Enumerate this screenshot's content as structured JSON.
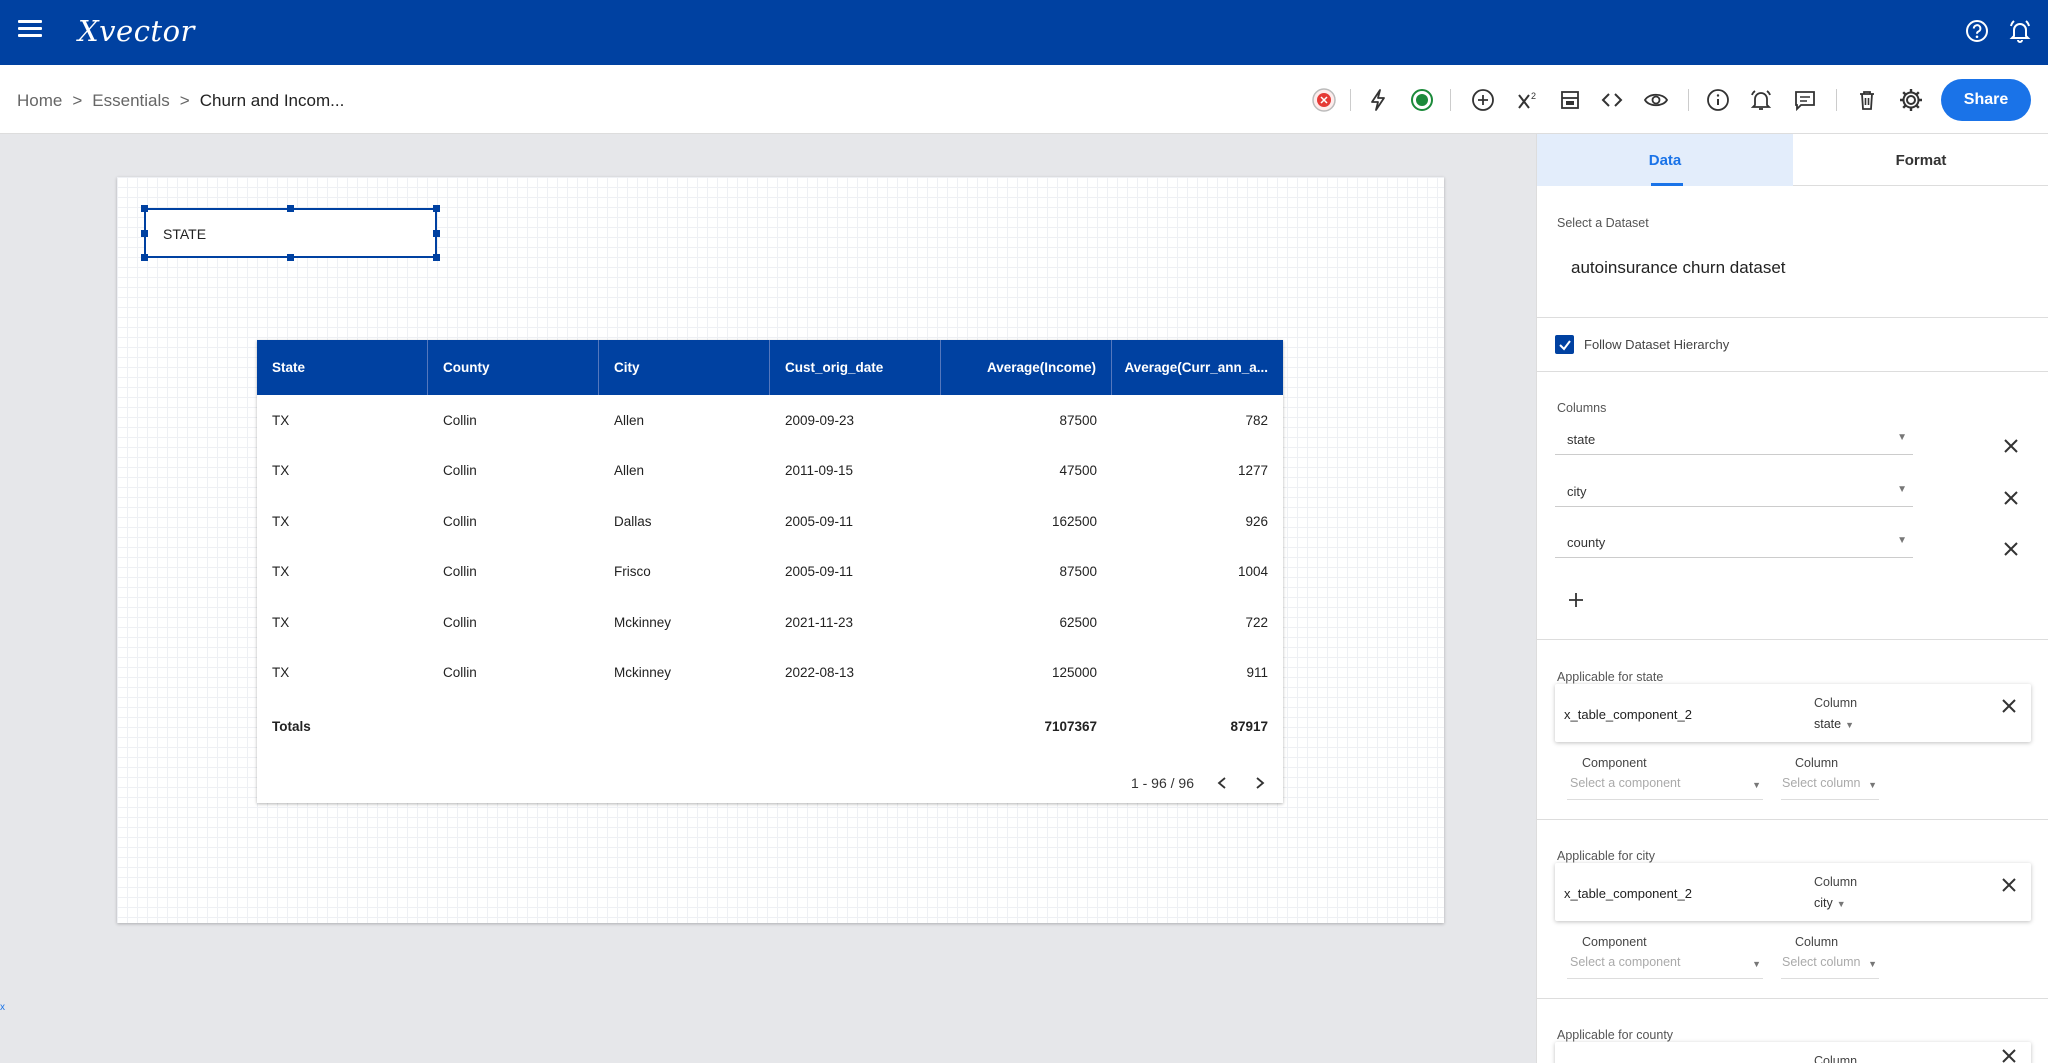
{
  "app": {
    "logo": "Xvector"
  },
  "breadcrumb": {
    "home": "Home",
    "sep1": ">",
    "essentials": "Essentials",
    "sep2": ">",
    "current": "Churn and Incom..."
  },
  "toolbar": {
    "share_label": "Share"
  },
  "canvas": {
    "filter_label": "STATE",
    "table": {
      "headers": [
        "State",
        "County",
        "City",
        "Cust_orig_date",
        "Average(Income)",
        "Average(Curr_ann_a..."
      ],
      "rows": [
        [
          "TX",
          "Collin",
          "Allen",
          "2009-09-23",
          "87500",
          "782"
        ],
        [
          "TX",
          "Collin",
          "Allen",
          "2011-09-15",
          "47500",
          "1277"
        ],
        [
          "TX",
          "Collin",
          "Dallas",
          "2005-09-11",
          "162500",
          "926"
        ],
        [
          "TX",
          "Collin",
          "Frisco",
          "2005-09-11",
          "87500",
          "1004"
        ],
        [
          "TX",
          "Collin",
          "Mckinney",
          "2021-11-23",
          "62500",
          "722"
        ],
        [
          "TX",
          "Collin",
          "Mckinney",
          "2022-08-13",
          "125000",
          "911"
        ]
      ],
      "totals": {
        "label": "Totals",
        "income": "7107367",
        "curr": "87917"
      },
      "pager": "1 - 96 / 96"
    }
  },
  "panel": {
    "tabs": {
      "data": "Data",
      "format": "Format"
    },
    "dataset_label": "Select a Dataset",
    "dataset_value": "autoinsurance churn dataset",
    "follow_hierarchy": "Follow Dataset Hierarchy",
    "columns_label": "Columns",
    "columns": [
      "state",
      "city",
      "county"
    ],
    "applicable": [
      {
        "title": "Applicable for state",
        "component": "x_table_component_2",
        "column_label": "Column",
        "column_value": "state",
        "sub_component_label": "Component",
        "sub_component_placeholder": "Select a component",
        "sub_column_label": "Column",
        "sub_column_placeholder": "Select column"
      },
      {
        "title": "Applicable for city",
        "component": "x_table_component_2",
        "column_label": "Column",
        "column_value": "city",
        "sub_component_label": "Component",
        "sub_component_placeholder": "Select a component",
        "sub_column_label": "Column",
        "sub_column_placeholder": "Select column"
      },
      {
        "title": "Applicable for county",
        "column_label": "Column"
      }
    ]
  },
  "misc": {
    "corner_mark": "x"
  }
}
